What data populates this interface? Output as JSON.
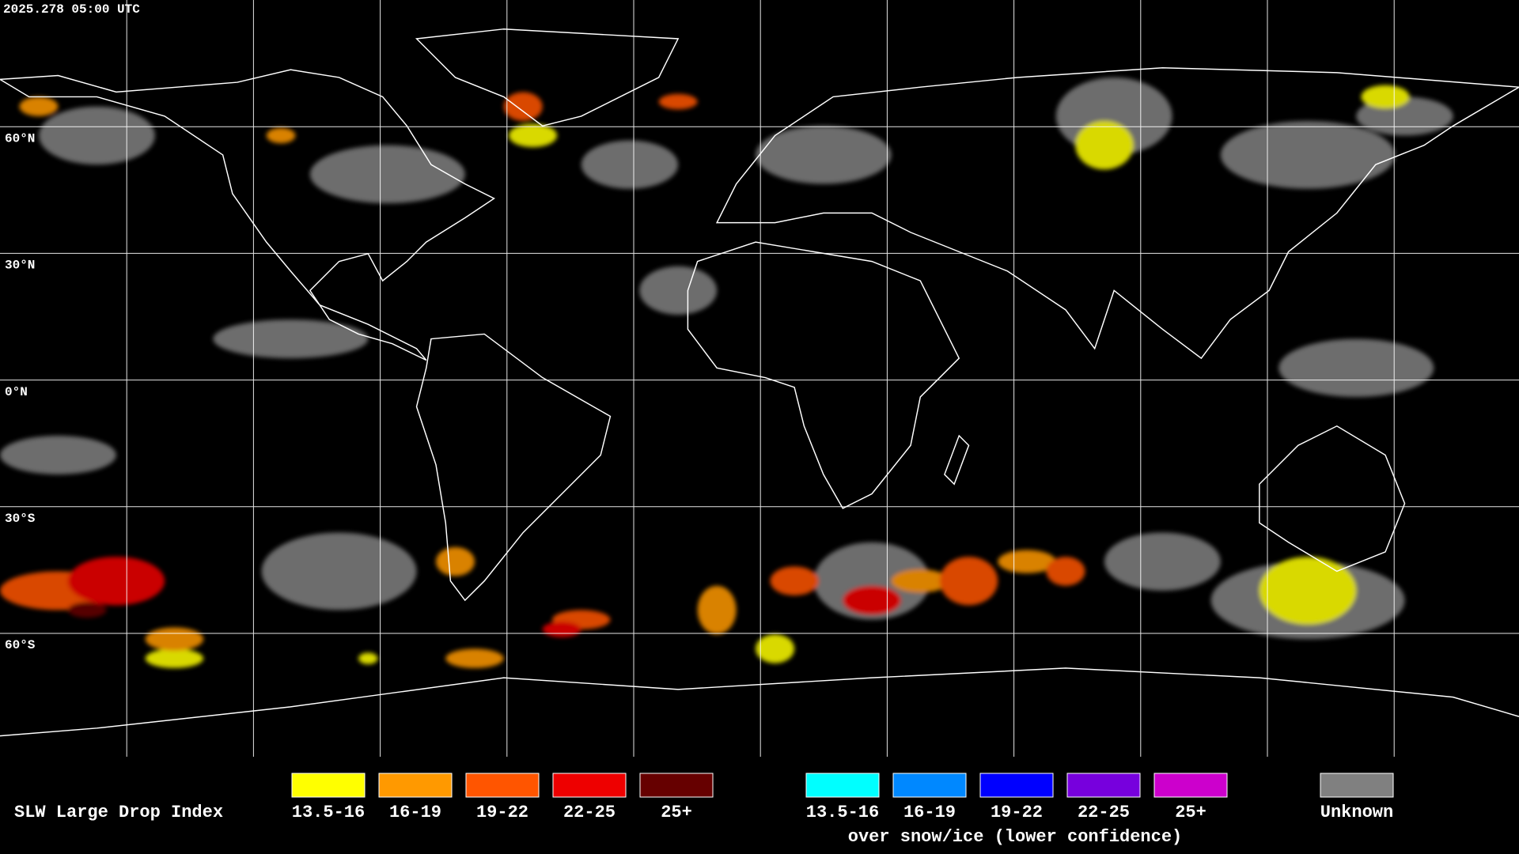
{
  "timestamp": "2025.278 05:00 UTC",
  "latitude_labels": [
    "60°N",
    "30°N",
    "0°N",
    "30°S",
    "60°S"
  ],
  "legend": {
    "title": "SLW Large Drop Index",
    "items": [
      {
        "label": "13.5-16",
        "color": "#ffff00"
      },
      {
        "label": "16-19",
        "color": "#ff9900"
      },
      {
        "label": "19-22",
        "color": "#ff5500"
      },
      {
        "label": "22-25",
        "color": "#ee0000"
      },
      {
        "label": "25+",
        "color": "#660000"
      }
    ],
    "snow_ice_items": [
      {
        "label": "13.5-16",
        "color": "#00ffff"
      },
      {
        "label": "16-19",
        "color": "#0088ff"
      },
      {
        "label": "19-22",
        "color": "#0000ff"
      },
      {
        "label": "22-25",
        "color": "#7700dd"
      },
      {
        "label": "25+",
        "color": "#cc00cc"
      }
    ],
    "snow_ice_caption": "over snow/ice (lower confidence)",
    "unknown": {
      "label": "Unknown",
      "color": "#808080"
    }
  }
}
